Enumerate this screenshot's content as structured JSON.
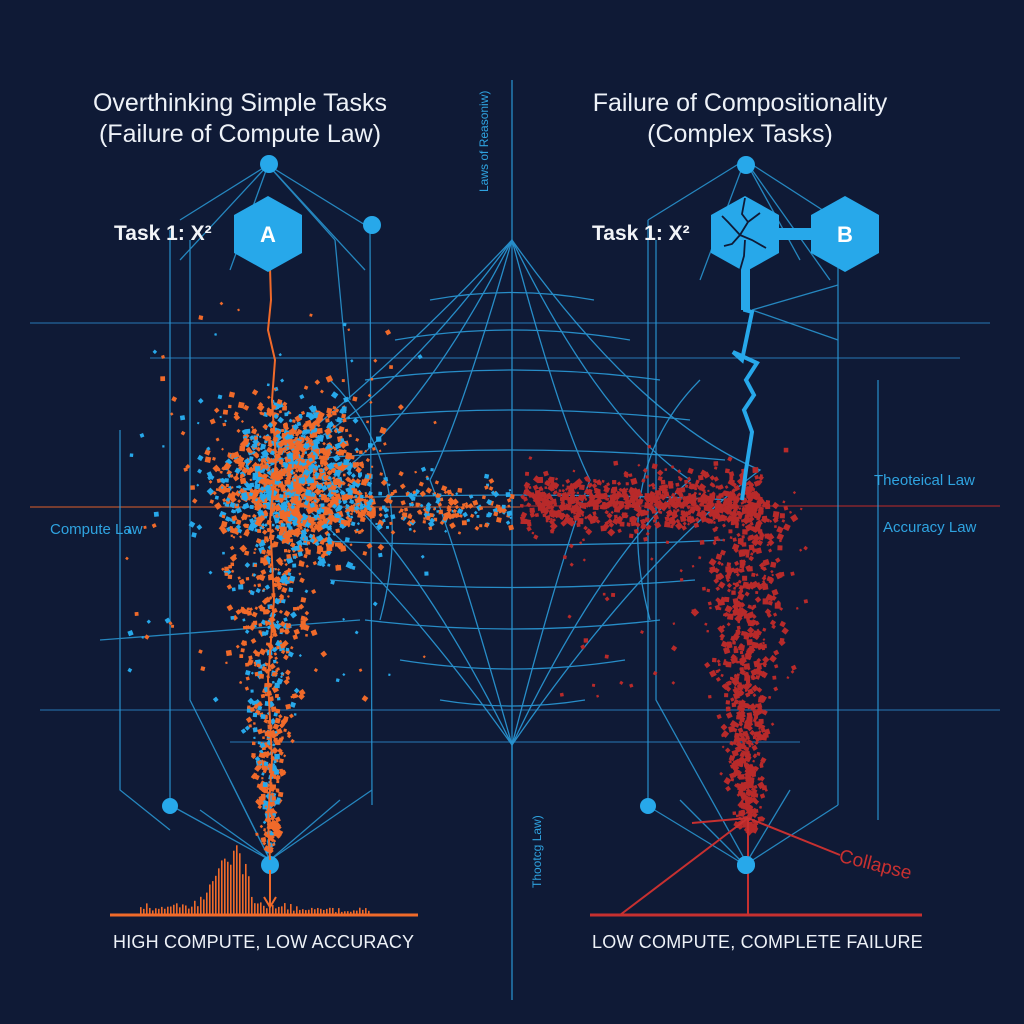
{
  "colors": {
    "background": "#0f1a36",
    "grid_blue": "#2a9ad8",
    "node_blue": "#27a8ea",
    "orange": "#f06a2a",
    "red": "#b82a2a",
    "text": "#eef2f8"
  },
  "left_panel": {
    "title_line1": "Overthinking Simple Tasks",
    "title_line2": "(Failure of Compute Law)",
    "task_label": "Task 1: X²",
    "hex_label": "A",
    "law_label": "Compute Law",
    "caption": "HIGH COMPUTE, LOW ACCURACY"
  },
  "right_panel": {
    "title_line1": "Failure of Compositionality",
    "title_line2": "(Complex Tasks)",
    "task_label": "Task 1: X²",
    "hex_label": "B",
    "law_label_top": "Theoteical Law",
    "law_label_bottom": "Accuracy Law",
    "collapse_label": "Collapse",
    "caption": "LOW COMPUTE, COMPLETE FAILURE"
  },
  "center": {
    "vertical_label_top": "Laws of Reasoniw)",
    "vertical_label_bottom": "Thootcg Law)"
  },
  "icons": {
    "hex_a": "hexagon-node-icon",
    "hex_cracked": "cracked-hexagon-icon",
    "hex_b": "hexagon-node-icon",
    "network_nodes": "circle-node-icon"
  }
}
